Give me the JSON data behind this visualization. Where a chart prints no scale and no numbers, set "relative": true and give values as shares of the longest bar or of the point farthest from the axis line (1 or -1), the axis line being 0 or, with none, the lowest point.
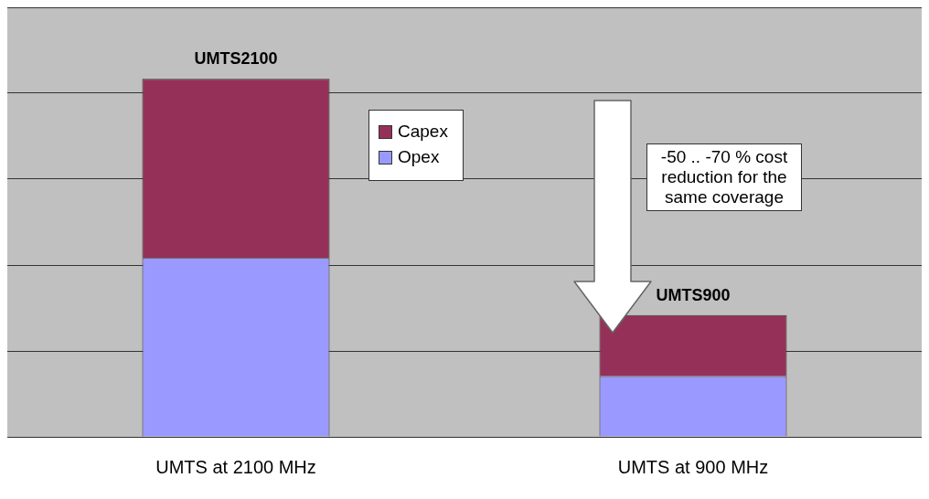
{
  "chart_data": {
    "type": "bar",
    "stacked": true,
    "relative": true,
    "grid": "y",
    "legend": "top",
    "categories": [
      "UMTS at 2100 MHz",
      "UMTS at 900 MHz"
    ],
    "series": [
      {
        "name": "Opex",
        "color": "#9999ff",
        "values": [
          0.5,
          0.17
        ]
      },
      {
        "name": "Capex",
        "color": "#953159",
        "values": [
          0.5,
          0.17
        ]
      }
    ],
    "annotations": [
      {
        "text": "UMTS2100",
        "x": "UMTS at 2100 MHz",
        "y": 1
      },
      {
        "text": "UMTS900",
        "x": "UMTS at 900 MHz",
        "y": 0.34
      },
      "-50 .. -70 % cost reduction for the same coverage"
    ]
  }
}
